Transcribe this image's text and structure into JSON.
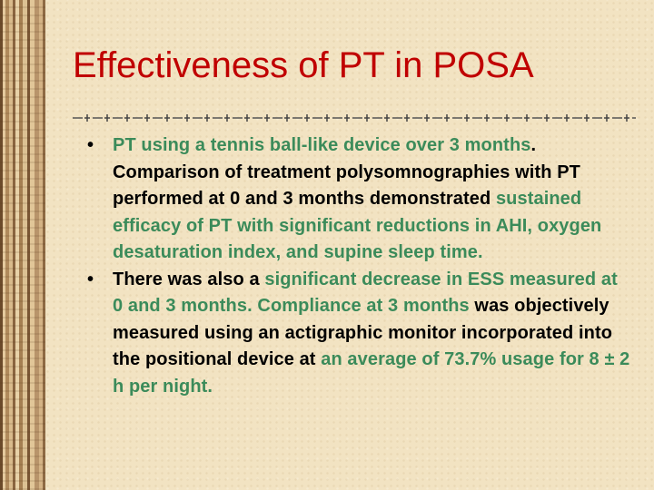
{
  "slide": {
    "title": "Effectiveness of PT in POSA",
    "colors": {
      "title": "#c00000",
      "highlight": "#3b8b5a",
      "text": "#000000"
    },
    "bullet_glyph": "•",
    "bullets": [
      {
        "segments": [
          {
            "text": "PT using a tennis ball-like device over 3 months",
            "highlight": true
          },
          {
            "text": ". Comparison of treatment polysomnographies with PT performed at 0 and 3 months demonstrated ",
            "highlight": false
          },
          {
            "text": "sustained efficacy of PT with significant reductions in AHI, oxygen desaturation index, and supine sleep time.",
            "highlight": true
          }
        ]
      },
      {
        "segments": [
          {
            "text": "There was also a ",
            "highlight": false
          },
          {
            "text": "significant decrease in ESS measured at 0 and 3 months. Compliance at 3 months",
            "highlight": true
          },
          {
            "text": " was objectively measured using an actigraphic monitor incorporated into the positional device at ",
            "highlight": false
          },
          {
            "text": "an average of 73.7% usage for 8 ± 2 h per night.",
            "highlight": true
          }
        ]
      }
    ]
  }
}
